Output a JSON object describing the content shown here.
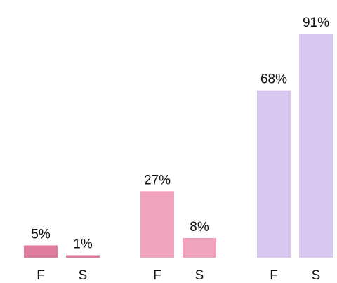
{
  "chart_data": {
    "type": "bar",
    "groups": [
      {
        "color": "#e07ba0",
        "categories": [
          "F",
          "S"
        ],
        "values": [
          5,
          1
        ],
        "value_labels": [
          "5%",
          "1%"
        ]
      },
      {
        "color": "#f0a3ba",
        "categories": [
          "F",
          "S"
        ],
        "values": [
          27,
          8
        ],
        "value_labels": [
          "27%",
          "8%"
        ]
      },
      {
        "color": "#d8c8ef",
        "categories": [
          "F",
          "S"
        ],
        "values": [
          68,
          91
        ],
        "value_labels": [
          "68%",
          "91%"
        ]
      }
    ]
  }
}
